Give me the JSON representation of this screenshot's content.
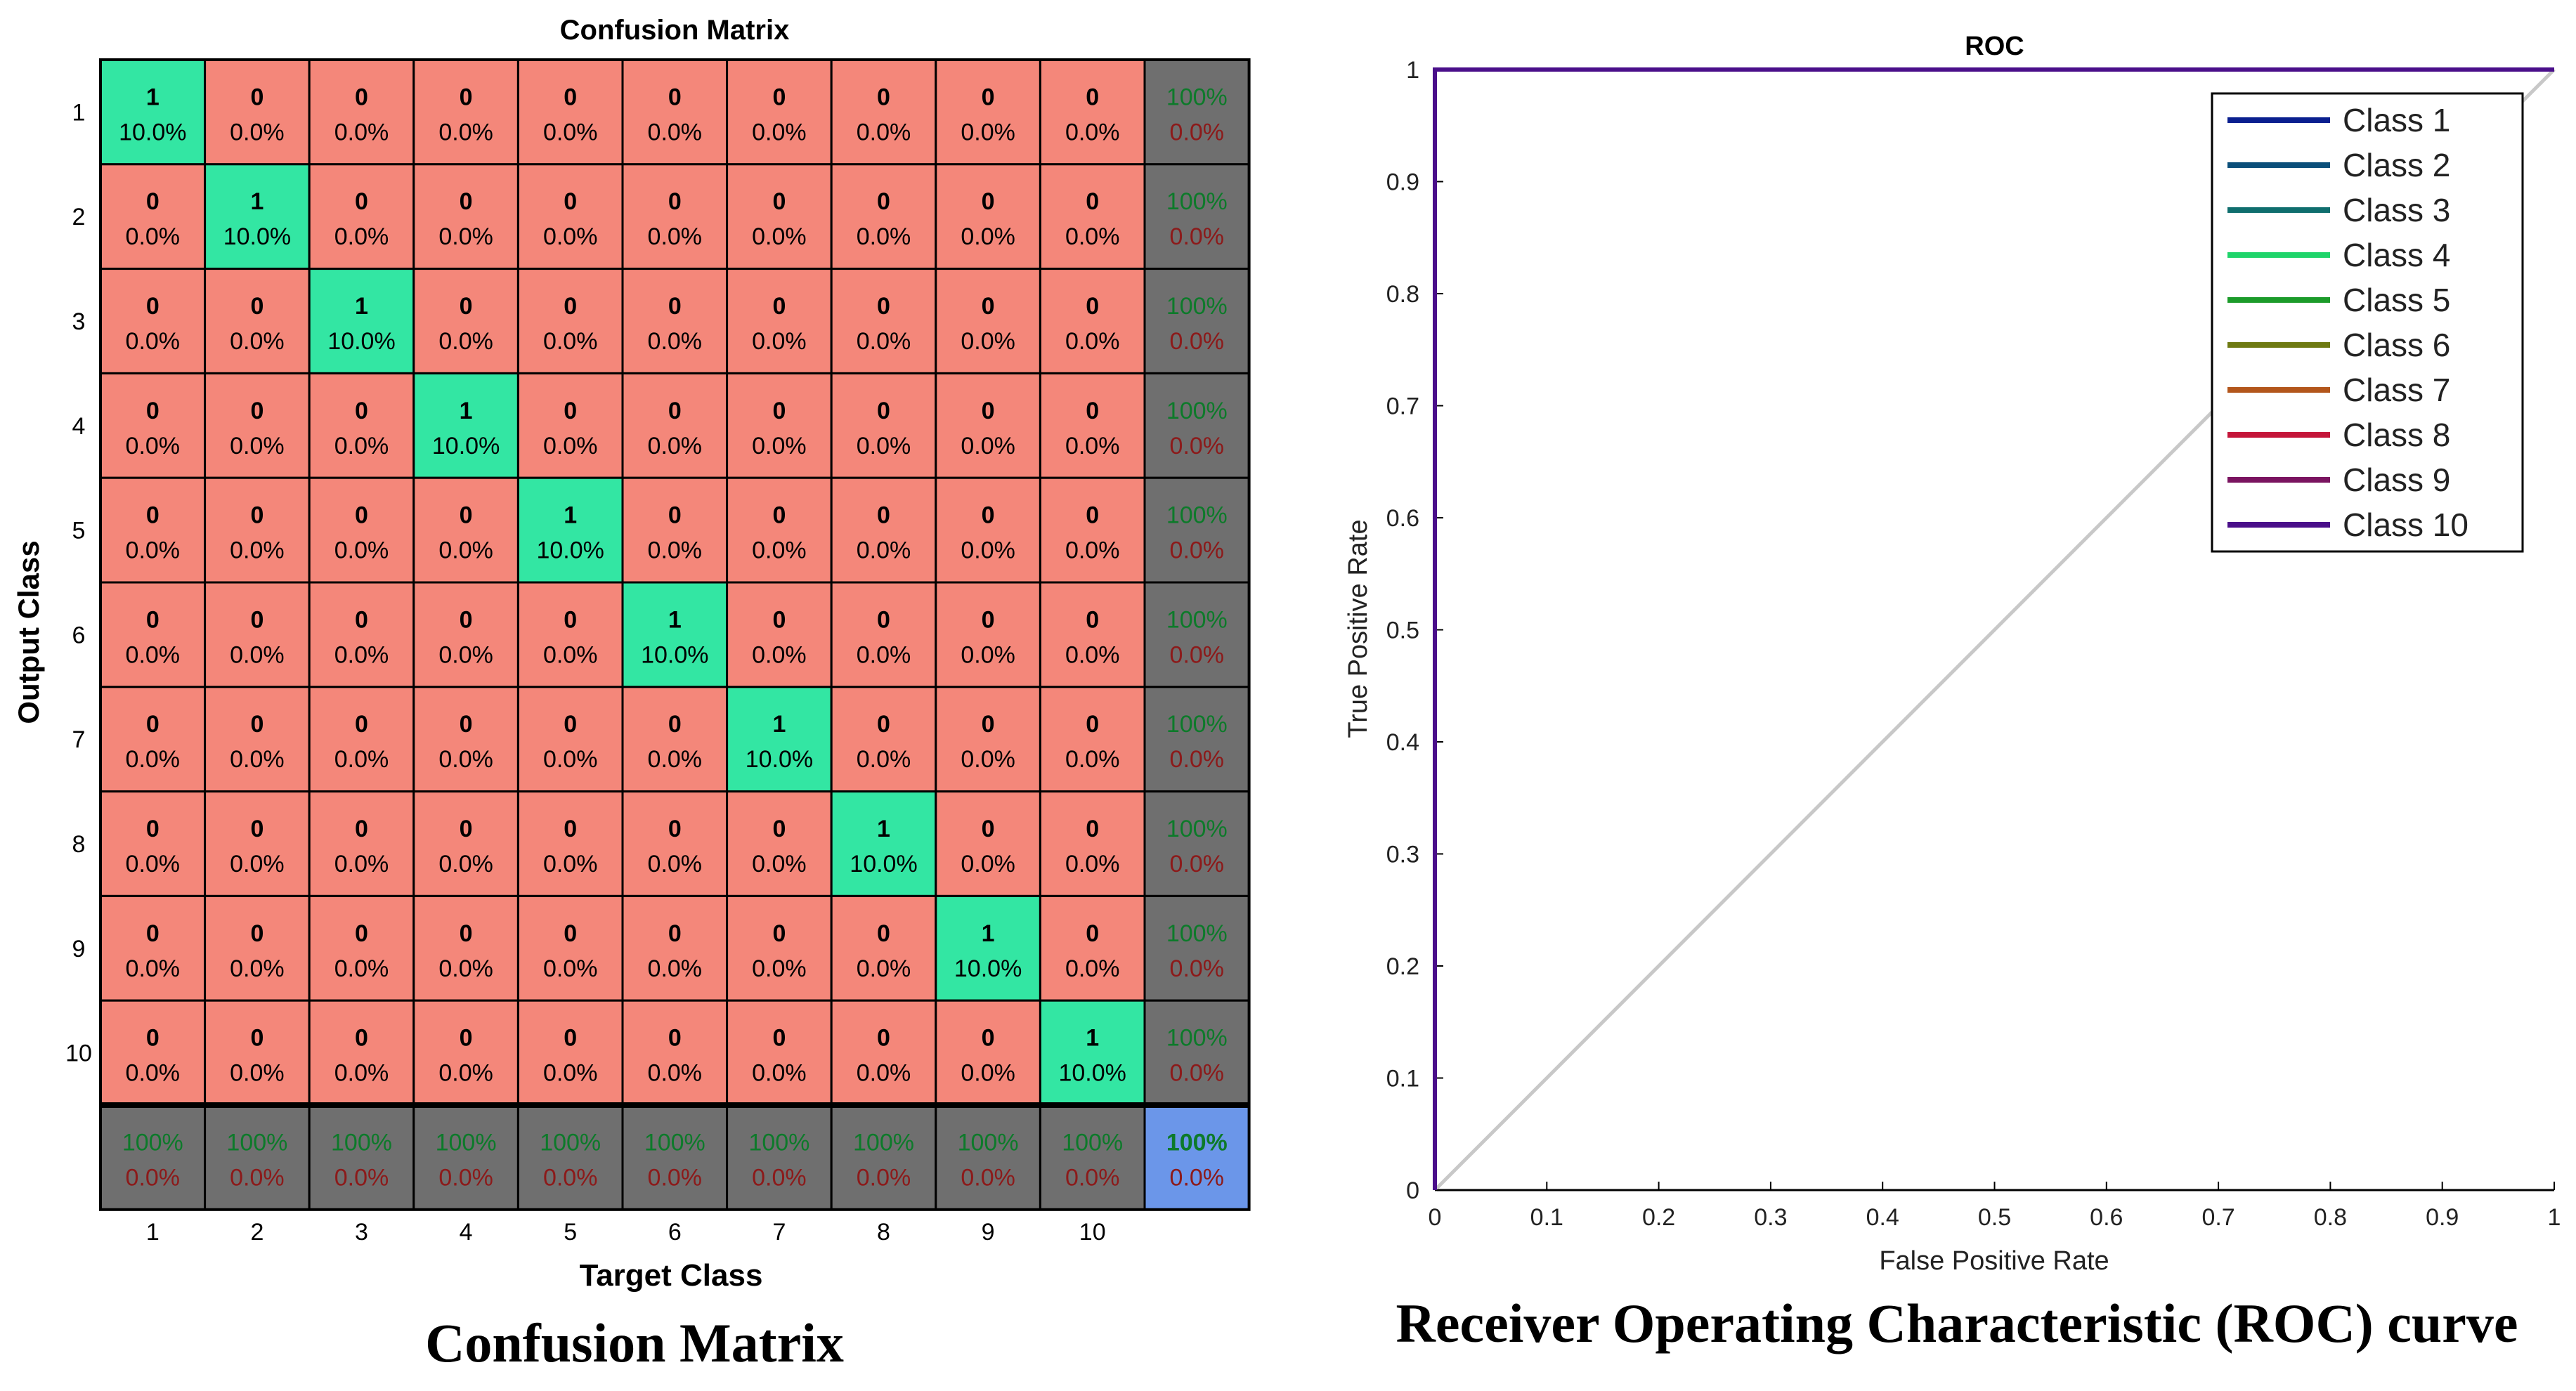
{
  "colors": {
    "diag": "#33e6a3",
    "off": "#f4877a",
    "summary": "#6f6f6f",
    "total": "#6b96e9",
    "good": "#0d7a2a",
    "bad": "#8c1a1a",
    "grid": "#000000",
    "roc_border": "#5b1080",
    "chance": "#c8c8c8"
  },
  "confusion": {
    "title": "Confusion Matrix",
    "caption": "Confusion Matrix",
    "xlabel": "Target Class",
    "ylabel": "Output Class",
    "row_labels": [
      "1",
      "2",
      "3",
      "4",
      "5",
      "6",
      "7",
      "8",
      "9",
      "10"
    ],
    "col_labels": [
      "1",
      "2",
      "3",
      "4",
      "5",
      "6",
      "7",
      "8",
      "9",
      "10"
    ],
    "counts": [
      [
        1,
        0,
        0,
        0,
        0,
        0,
        0,
        0,
        0,
        0
      ],
      [
        0,
        1,
        0,
        0,
        0,
        0,
        0,
        0,
        0,
        0
      ],
      [
        0,
        0,
        1,
        0,
        0,
        0,
        0,
        0,
        0,
        0
      ],
      [
        0,
        0,
        0,
        1,
        0,
        0,
        0,
        0,
        0,
        0
      ],
      [
        0,
        0,
        0,
        0,
        1,
        0,
        0,
        0,
        0,
        0
      ],
      [
        0,
        0,
        0,
        0,
        0,
        1,
        0,
        0,
        0,
        0
      ],
      [
        0,
        0,
        0,
        0,
        0,
        0,
        1,
        0,
        0,
        0
      ],
      [
        0,
        0,
        0,
        0,
        0,
        0,
        0,
        1,
        0,
        0
      ],
      [
        0,
        0,
        0,
        0,
        0,
        0,
        0,
        0,
        1,
        0
      ],
      [
        0,
        0,
        0,
        0,
        0,
        0,
        0,
        0,
        0,
        1
      ]
    ],
    "diag_pct": "10.0%",
    "off_pct": "0.0%",
    "row_summary": {
      "good": "100%",
      "bad": "0.0%"
    },
    "col_summary": {
      "good": "100%",
      "bad": "0.0%"
    },
    "total": {
      "good": "100%",
      "bad": "0.0%"
    }
  },
  "chart_data": [
    {
      "type": "heatmap",
      "title": "Confusion Matrix",
      "xlabel": "Target Class",
      "ylabel": "Output Class",
      "categories": [
        "1",
        "2",
        "3",
        "4",
        "5",
        "6",
        "7",
        "8",
        "9",
        "10"
      ],
      "values": [
        [
          1,
          0,
          0,
          0,
          0,
          0,
          0,
          0,
          0,
          0
        ],
        [
          0,
          1,
          0,
          0,
          0,
          0,
          0,
          0,
          0,
          0
        ],
        [
          0,
          0,
          1,
          0,
          0,
          0,
          0,
          0,
          0,
          0
        ],
        [
          0,
          0,
          0,
          1,
          0,
          0,
          0,
          0,
          0,
          0
        ],
        [
          0,
          0,
          0,
          0,
          1,
          0,
          0,
          0,
          0,
          0
        ],
        [
          0,
          0,
          0,
          0,
          0,
          1,
          0,
          0,
          0,
          0
        ],
        [
          0,
          0,
          0,
          0,
          0,
          0,
          1,
          0,
          0,
          0
        ],
        [
          0,
          0,
          0,
          0,
          0,
          0,
          0,
          1,
          0,
          0
        ],
        [
          0,
          0,
          0,
          0,
          0,
          0,
          0,
          0,
          1,
          0
        ],
        [
          0,
          0,
          0,
          0,
          0,
          0,
          0,
          0,
          0,
          1
        ]
      ]
    },
    {
      "type": "line",
      "title": "ROC",
      "caption": "Receiver Operating Characteristic (ROC) curve",
      "xlabel": "False Positive Rate",
      "ylabel": "True Positive Rate",
      "xlim": [
        0,
        1
      ],
      "ylim": [
        0,
        1
      ],
      "xticks": [
        "0",
        "0.1",
        "0.2",
        "0.3",
        "0.4",
        "0.5",
        "0.6",
        "0.7",
        "0.8",
        "0.9",
        "1"
      ],
      "yticks": [
        "0",
        "0.1",
        "0.2",
        "0.3",
        "0.4",
        "0.5",
        "0.6",
        "0.7",
        "0.8",
        "0.9",
        "1"
      ],
      "legend_position": "top-right",
      "series": [
        {
          "name": "Class 1",
          "color": "#0a1f8f",
          "x": [
            0,
            0,
            1
          ],
          "y": [
            0,
            1,
            1
          ]
        },
        {
          "name": "Class 2",
          "color": "#0b4f7a",
          "x": [
            0,
            0,
            1
          ],
          "y": [
            0,
            1,
            1
          ]
        },
        {
          "name": "Class 3",
          "color": "#0f6e6e",
          "x": [
            0,
            0,
            1
          ],
          "y": [
            0,
            1,
            1
          ]
        },
        {
          "name": "Class 4",
          "color": "#1fd46a",
          "x": [
            0,
            0,
            1
          ],
          "y": [
            0,
            1,
            1
          ]
        },
        {
          "name": "Class 5",
          "color": "#1c9b2a",
          "x": [
            0,
            0,
            1
          ],
          "y": [
            0,
            1,
            1
          ]
        },
        {
          "name": "Class 6",
          "color": "#6e7a12",
          "x": [
            0,
            0,
            1
          ],
          "y": [
            0,
            1,
            1
          ]
        },
        {
          "name": "Class 7",
          "color": "#b3561b",
          "x": [
            0,
            0,
            1
          ],
          "y": [
            0,
            1,
            1
          ]
        },
        {
          "name": "Class 8",
          "color": "#c4163a",
          "x": [
            0,
            0,
            1
          ],
          "y": [
            0,
            1,
            1
          ]
        },
        {
          "name": "Class 9",
          "color": "#7a1460",
          "x": [
            0,
            0,
            1
          ],
          "y": [
            0,
            1,
            1
          ]
        },
        {
          "name": "Class 10",
          "color": "#4a0f8a",
          "x": [
            0,
            0,
            1
          ],
          "y": [
            0,
            1,
            1
          ]
        }
      ],
      "reference_line": {
        "x": [
          0,
          1
        ],
        "y": [
          0,
          1
        ]
      }
    }
  ]
}
